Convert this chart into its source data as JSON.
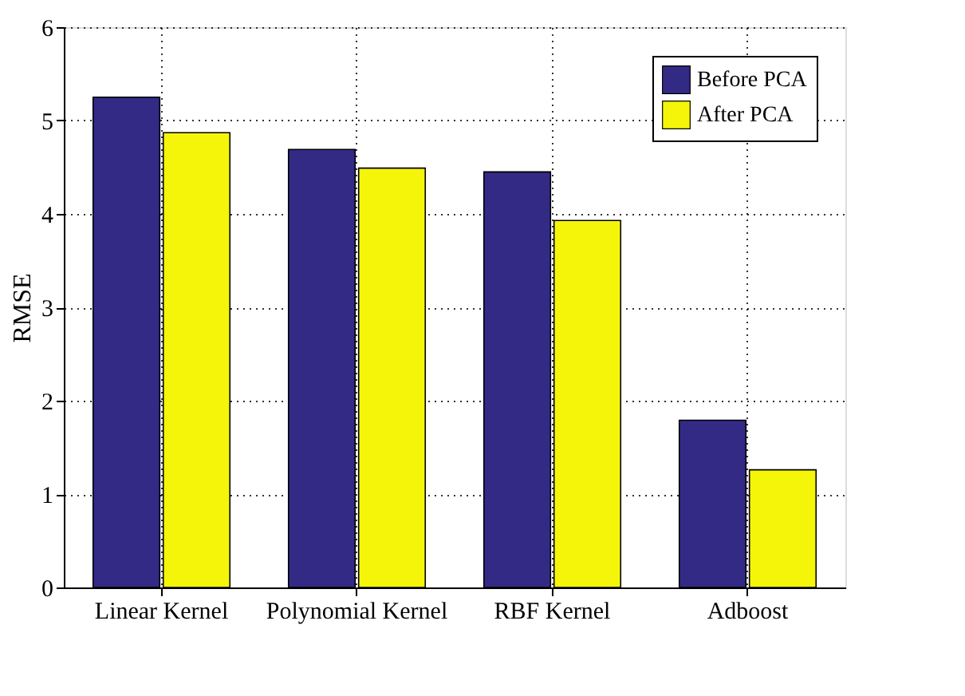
{
  "chart_data": {
    "type": "bar",
    "ylabel": "RMSE",
    "categories": [
      "Linear Kernel",
      "Polynomial Kernel",
      "RBF Kernel",
      "Adboost"
    ],
    "series": [
      {
        "name": "Before PCA",
        "color": "#332a86",
        "values": [
          5.25,
          4.69,
          4.45,
          1.79
        ]
      },
      {
        "name": "After PCA",
        "color": "#f5f50a",
        "values": [
          4.87,
          4.49,
          3.93,
          1.26
        ]
      }
    ],
    "ylim": [
      0,
      6
    ],
    "yticks": [
      0,
      1,
      2,
      3,
      4,
      5,
      6
    ],
    "grid": true,
    "legend": "top right"
  }
}
